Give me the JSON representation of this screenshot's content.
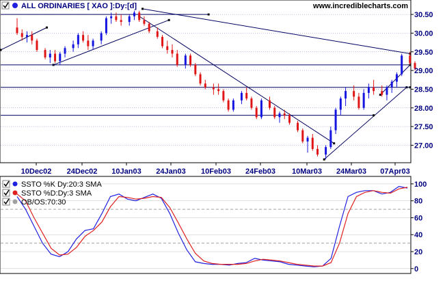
{
  "header": {
    "title": "ALL ORDINARIES [ XAO ]:Dy:[d]",
    "site": "www.incrediblecharts.com"
  },
  "colors": {
    "up": "#1515e0",
    "down": "#e01515",
    "axis_text": "#000080",
    "grid": "#8080c0",
    "trend": "#000060",
    "k_line": "#2020e0",
    "d_line": "#e02020",
    "obos": "#a0a0a0"
  },
  "indicator_legend": [
    {
      "label": "SSTO %K Dy:20:3 SMA",
      "color": "#2020e0"
    },
    {
      "label": "SSTO %D:Dy:3 SMA",
      "color": "#e02020"
    },
    {
      "label": "OB/OS:70:30",
      "color": "#a0a0a0"
    }
  ],
  "chart_data": [
    {
      "type": "bar",
      "panel": "price",
      "title": "ALL ORDINARIES [ XAO ]:Dy:[d]",
      "x_tick_labels": [
        "10Dec02",
        "24Dec02",
        "10Jan03",
        "24Jan03",
        "10Feb03",
        "24Feb03",
        "10Mar03",
        "24Mar03",
        "07Apr03"
      ],
      "y_ticks": [
        27.0,
        27.5,
        28.0,
        28.5,
        29.0,
        29.5,
        30.0,
        30.5
      ],
      "ylim": [
        26.55,
        30.85
      ],
      "grid": "horizontal",
      "ohlc": [
        [
          30.15,
          30.4,
          29.95,
          30.0
        ],
        [
          30.0,
          30.1,
          29.8,
          29.9
        ],
        [
          29.9,
          30.05,
          29.75,
          29.95
        ],
        [
          29.95,
          30.05,
          29.7,
          29.8
        ],
        [
          29.8,
          29.85,
          29.5,
          29.55
        ],
        [
          29.55,
          29.6,
          29.3,
          29.35
        ],
        [
          29.35,
          29.55,
          29.2,
          29.45
        ],
        [
          29.45,
          29.55,
          29.2,
          29.25
        ],
        [
          29.25,
          29.5,
          29.15,
          29.45
        ],
        [
          29.45,
          29.65,
          29.35,
          29.6
        ],
        [
          29.6,
          29.8,
          29.5,
          29.7
        ],
        [
          29.7,
          30.0,
          29.6,
          29.95
        ],
        [
          29.95,
          30.05,
          29.75,
          29.8
        ],
        [
          29.8,
          29.95,
          29.55,
          29.65
        ],
        [
          29.65,
          29.85,
          29.55,
          29.8
        ],
        [
          29.8,
          30.05,
          29.7,
          30.0
        ],
        [
          30.0,
          30.45,
          29.95,
          30.4
        ],
        [
          30.4,
          30.55,
          30.25,
          30.45
        ],
        [
          30.45,
          30.55,
          30.3,
          30.35
        ],
        [
          30.35,
          30.5,
          30.2,
          30.3
        ],
        [
          30.3,
          30.5,
          30.2,
          30.45
        ],
        [
          30.45,
          30.6,
          30.35,
          30.55
        ],
        [
          30.55,
          30.6,
          30.3,
          30.35
        ],
        [
          30.35,
          30.45,
          30.2,
          30.25
        ],
        [
          30.25,
          30.3,
          30.0,
          30.05
        ],
        [
          30.05,
          30.15,
          29.85,
          29.9
        ],
        [
          29.9,
          29.95,
          29.6,
          29.65
        ],
        [
          29.65,
          29.8,
          29.45,
          29.55
        ],
        [
          29.55,
          29.7,
          29.35,
          29.45
        ],
        [
          29.45,
          29.55,
          29.1,
          29.15
        ],
        [
          29.15,
          29.45,
          29.05,
          29.4
        ],
        [
          29.4,
          29.45,
          29.1,
          29.15
        ],
        [
          29.15,
          29.2,
          28.85,
          28.9
        ],
        [
          28.9,
          28.95,
          28.6,
          28.65
        ],
        [
          28.65,
          28.75,
          28.5,
          28.55
        ],
        [
          28.55,
          28.65,
          28.35,
          28.5
        ],
        [
          28.5,
          28.65,
          28.35,
          28.45
        ],
        [
          28.45,
          28.5,
          28.15,
          28.2
        ],
        [
          28.2,
          28.25,
          27.9,
          27.95
        ],
        [
          27.95,
          28.25,
          27.9,
          28.2
        ],
        [
          28.2,
          28.45,
          28.1,
          28.4
        ],
        [
          28.4,
          28.55,
          28.2,
          28.25
        ],
        [
          28.25,
          28.3,
          27.95,
          28.0
        ],
        [
          28.0,
          28.05,
          27.7,
          27.75
        ],
        [
          27.75,
          28.25,
          27.7,
          28.2
        ],
        [
          28.2,
          28.3,
          27.95,
          28.0
        ],
        [
          28.0,
          28.05,
          27.7,
          27.75
        ],
        [
          27.75,
          27.9,
          27.6,
          27.85
        ],
        [
          27.85,
          27.95,
          27.7,
          27.8
        ],
        [
          27.8,
          27.85,
          27.55,
          27.6
        ],
        [
          27.6,
          27.65,
          27.35,
          27.4
        ],
        [
          27.4,
          27.45,
          27.05,
          27.1
        ],
        [
          27.1,
          27.25,
          26.8,
          27.2
        ],
        [
          27.2,
          27.3,
          26.85,
          26.9
        ],
        [
          26.9,
          27.0,
          26.7,
          26.75
        ],
        [
          26.75,
          27.0,
          26.62,
          26.95
        ],
        [
          26.95,
          27.5,
          26.9,
          27.4
        ],
        [
          27.4,
          28.0,
          27.3,
          27.95
        ],
        [
          27.95,
          28.3,
          27.8,
          28.25
        ],
        [
          28.25,
          28.55,
          28.05,
          28.45
        ],
        [
          28.45,
          28.6,
          28.2,
          28.3
        ],
        [
          28.3,
          28.4,
          27.95,
          28.0
        ],
        [
          28.0,
          28.5,
          27.95,
          28.4
        ],
        [
          28.4,
          28.65,
          28.25,
          28.55
        ],
        [
          28.55,
          28.75,
          28.35,
          28.45
        ],
        [
          28.45,
          28.6,
          28.3,
          28.35
        ],
        [
          28.35,
          28.6,
          28.2,
          28.55
        ],
        [
          28.55,
          28.75,
          28.4,
          28.7
        ],
        [
          28.7,
          28.95,
          28.55,
          28.9
        ],
        [
          28.9,
          29.45,
          28.85,
          29.4
        ],
        [
          29.4,
          29.5,
          29.15,
          29.2
        ],
        [
          29.2,
          29.25,
          29.0,
          29.05
        ]
      ],
      "lines": [
        {
          "role": "trendline",
          "from": [
            -5,
            29.55
          ],
          "to": [
            9,
            30.15
          ]
        },
        {
          "role": "trendline",
          "from": [
            11,
            29.15
          ],
          "to": [
            46,
            30.35
          ]
        },
        {
          "role": "trendline",
          "from": [
            38,
            30.65
          ],
          "to": [
            124,
            29.45
          ]
        },
        {
          "role": "trendline",
          "from": [
            37,
            30.45
          ],
          "to": [
            96,
            27.05
          ]
        },
        {
          "role": "trendline",
          "from": [
            93,
            26.62
          ],
          "to": [
            118,
            28.55
          ]
        },
        {
          "role": "trendline",
          "from": [
            110,
            28.35
          ],
          "to": [
            125,
            29.15
          ]
        },
        {
          "role": "horizontal",
          "y": 30.5,
          "from_index": -5,
          "to_index": 58
        },
        {
          "role": "horizontal",
          "y": 29.15,
          "from_index": -5,
          "to_index": 125
        },
        {
          "role": "horizontal",
          "y": 28.55,
          "from_index": -5,
          "to_index": 125
        },
        {
          "role": "horizontal",
          "y": 27.8,
          "from_index": -5,
          "to_index": 108
        }
      ]
    },
    {
      "type": "line",
      "panel": "indicator",
      "x_tick_labels": [
        "10Dec02",
        "24Dec02",
        "10Jan03",
        "24Jan03",
        "10Feb03",
        "24Feb03",
        "10Mar03",
        "24Mar03",
        "07Apr03"
      ],
      "y_ticks": [
        0,
        20,
        40,
        60,
        80,
        100
      ],
      "ylim": [
        -5,
        108
      ],
      "ob_os": [
        70,
        30
      ],
      "series": [
        {
          "name": "SSTO %K Dy:20:3 SMA",
          "values": [
            85,
            70,
            50,
            30,
            17,
            14,
            20,
            35,
            45,
            47,
            65,
            85,
            88,
            82,
            80,
            84,
            88,
            83,
            65,
            42,
            22,
            8,
            6,
            5,
            5,
            4,
            6,
            7,
            12,
            10,
            9,
            8,
            5,
            4,
            3,
            2,
            3,
            12,
            50,
            85,
            90,
            92,
            92,
            88,
            90,
            97,
            95
          ]
        },
        {
          "name": "SSTO %D:Dy:3 SMA",
          "values": [
            88,
            80,
            60,
            42,
            24,
            16,
            17,
            25,
            38,
            45,
            55,
            73,
            85,
            84,
            82,
            83,
            85,
            84,
            72,
            54,
            35,
            18,
            9,
            6,
            5,
            5,
            5,
            6,
            9,
            11,
            10,
            9,
            7,
            5,
            4,
            3,
            3,
            7,
            30,
            65,
            85,
            90,
            92,
            90,
            89,
            94,
            96
          ]
        }
      ]
    }
  ]
}
